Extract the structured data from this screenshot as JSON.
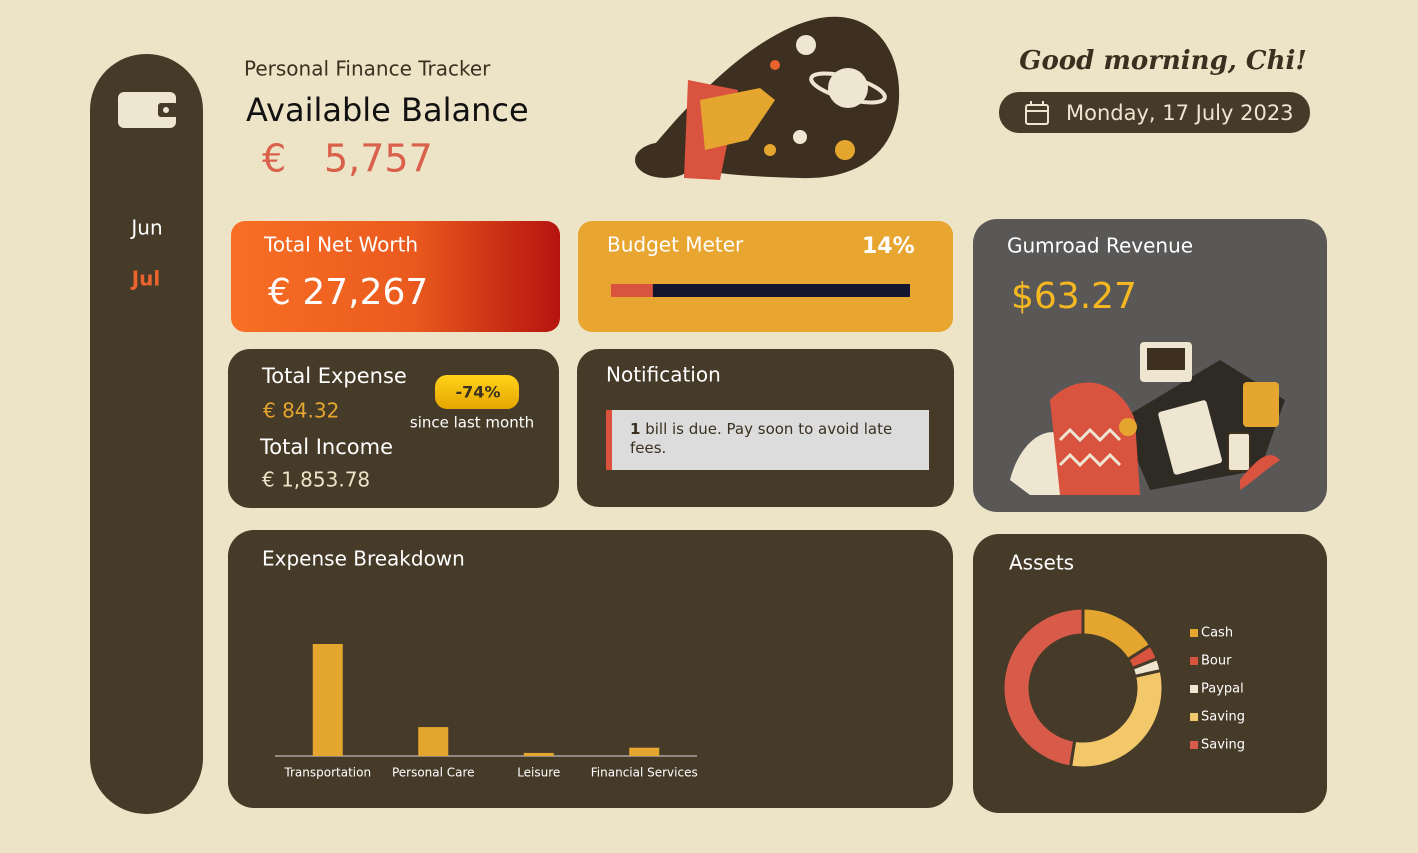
{
  "sidebar": {
    "months": [
      "Jun",
      "Jul"
    ]
  },
  "header": {
    "subtitle": "Personal Finance Tracker",
    "title": "Available Balance",
    "currency": "€",
    "balance": "5,757",
    "greeting": "Good morning, Chi!",
    "date": "Monday, 17 July 2023"
  },
  "net_worth": {
    "label": "Total Net Worth",
    "value": "€ 27,267"
  },
  "budget_meter": {
    "label": "Budget Meter",
    "value": 14,
    "value_label": "14%"
  },
  "gumroad": {
    "label": "Gumroad Revenue",
    "value": "$63.27"
  },
  "expense": {
    "expense_label": "Total Expense",
    "expense_value": "€ 84.32",
    "change": "-74%",
    "change_note": "since last month",
    "income_label": "Total Income",
    "income_value": "€ 1,853.78"
  },
  "notification": {
    "label": "Notification",
    "count": "1",
    "message": "bill is due. Pay soon to avoid late fees."
  },
  "chart_data": [
    {
      "type": "bar",
      "title": "Expense Breakdown",
      "categories": [
        "Transportation",
        "Personal Care",
        "Leisure",
        "Financial Services"
      ],
      "values": [
        62,
        16,
        1.7,
        4.6
      ],
      "color": "#e5a630"
    },
    {
      "type": "pie",
      "title": "Assets",
      "categories": [
        "Cash",
        "Bour",
        "Paypal",
        "Saving",
        "Saving"
      ],
      "values": [
        16,
        3,
        2.5,
        31,
        47.5
      ],
      "colors": [
        "#e5a630",
        "#d9533f",
        "#efe6d2",
        "#f2c86a",
        "#d85a48"
      ]
    }
  ]
}
